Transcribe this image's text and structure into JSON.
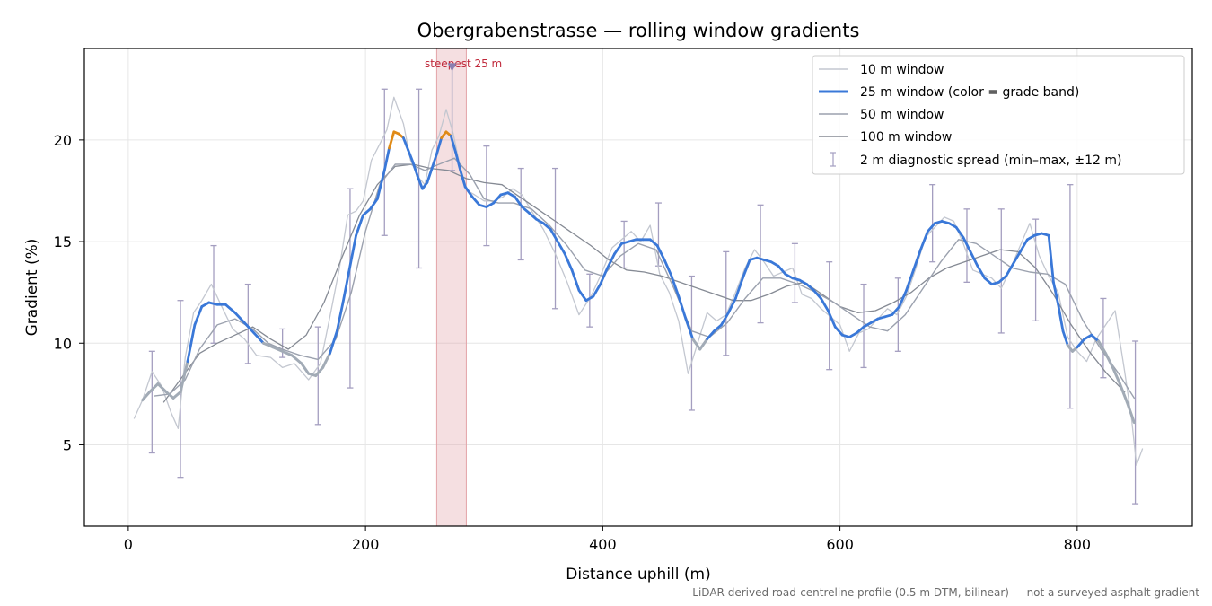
{
  "chart_data": {
    "type": "line",
    "title": "Obergrabenstrasse — rolling window gradients",
    "xlabel": "Distance uphill (m)",
    "ylabel": "Gradient (%)",
    "xlim": [
      -37,
      897
    ],
    "ylim": [
      1.0,
      24.5
    ],
    "x_ticks": [
      0,
      200,
      400,
      600,
      800
    ],
    "y_ticks": [
      5,
      10,
      15,
      20
    ],
    "grid": true,
    "legend_position": "top-right",
    "footnote": "LiDAR-derived road-centreline profile (0.5 m DTM, bilinear) — not a surveyed asphalt gradient",
    "highlight": {
      "label": "steepest 25 m",
      "x_start": 260,
      "x_end": 285,
      "marker_x": 273,
      "marker_y": 23.6,
      "color": "#e3a3a8"
    },
    "series": [
      {
        "name": "10 m window",
        "color": "#c3c7d0",
        "x": [
          5,
          12,
          20,
          28,
          36,
          42,
          48,
          55,
          62,
          70,
          78,
          88,
          98,
          108,
          120,
          130,
          140,
          152,
          162,
          170,
          178,
          185,
          192,
          198,
          205,
          212,
          218,
          224,
          232,
          238,
          244,
          250,
          256,
          262,
          268,
          274,
          280,
          286,
          292,
          300,
          308,
          316,
          324,
          332,
          340,
          350,
          360,
          370,
          380,
          390,
          398,
          408,
          416,
          424,
          432,
          440,
          448,
          456,
          464,
          472,
          480,
          488,
          496,
          504,
          512,
          520,
          528,
          536,
          544,
          552,
          560,
          568,
          576,
          584,
          592,
          600,
          608,
          616,
          624,
          632,
          640,
          648,
          656,
          664,
          672,
          680,
          688,
          696,
          704,
          712,
          720,
          728,
          736,
          744,
          752,
          760,
          768,
          776,
          784,
          792,
          800,
          808,
          816,
          824,
          832,
          840,
          846,
          850,
          855
        ],
        "values": [
          6.3,
          7.2,
          8.6,
          7.9,
          6.6,
          5.8,
          9.3,
          11.5,
          12.1,
          12.9,
          11.9,
          10.7,
          10.2,
          9.4,
          9.3,
          8.8,
          9.0,
          8.2,
          9.0,
          11.3,
          13.7,
          16.3,
          16.5,
          17.0,
          19.0,
          19.8,
          20.5,
          22.1,
          20.8,
          19.0,
          18.2,
          17.8,
          19.5,
          20.2,
          21.5,
          20.3,
          18.6,
          17.5,
          17.3,
          17.0,
          17.0,
          17.2,
          17.6,
          17.3,
          16.5,
          15.6,
          14.4,
          13.0,
          11.4,
          12.3,
          13.3,
          14.7,
          15.1,
          15.5,
          15.0,
          15.8,
          13.4,
          12.5,
          11.1,
          8.5,
          10.0,
          11.5,
          11.1,
          11.4,
          12.5,
          13.7,
          14.6,
          14.0,
          13.3,
          13.5,
          13.7,
          12.4,
          12.2,
          11.7,
          11.3,
          10.9,
          9.6,
          10.5,
          10.7,
          11.2,
          11.7,
          11.4,
          12.3,
          13.7,
          15.2,
          15.7,
          16.2,
          16.0,
          14.9,
          13.6,
          13.4,
          13.2,
          12.7,
          13.7,
          14.8,
          15.9,
          14.3,
          13.3,
          12.5,
          10.3,
          9.6,
          9.1,
          10.2,
          10.9,
          11.6,
          8.6,
          6.2,
          4.0,
          4.8
        ]
      },
      {
        "name": "25 m window (color = grade band)",
        "color": "#3a78d8",
        "band_colors": {
          "high": "#e08a16",
          "mid": "#3a78d8",
          "low": "#a2abb6"
        },
        "x": [
          12,
          18,
          25,
          32,
          38,
          44,
          50,
          56,
          62,
          68,
          75,
          82,
          90,
          98,
          106,
          114,
          122,
          130,
          138,
          146,
          152,
          158,
          164,
          170,
          176,
          181,
          186,
          192,
          198,
          204,
          210,
          216,
          220,
          224,
          228,
          232,
          236,
          240,
          244,
          248,
          252,
          256,
          260,
          264,
          268,
          272,
          276,
          280,
          284,
          290,
          296,
          302,
          308,
          314,
          320,
          326,
          332,
          338,
          344,
          350,
          356,
          362,
          368,
          374,
          380,
          386,
          392,
          398,
          404,
          410,
          416,
          422,
          428,
          434,
          440,
          446,
          452,
          458,
          464,
          470,
          476,
          482,
          488,
          494,
          500,
          506,
          512,
          518,
          524,
          530,
          536,
          542,
          548,
          554,
          560,
          566,
          572,
          578,
          584,
          590,
          596,
          602,
          608,
          614,
          620,
          626,
          632,
          638,
          644,
          650,
          656,
          662,
          668,
          674,
          680,
          686,
          692,
          698,
          704,
          710,
          716,
          722,
          728,
          734,
          740,
          746,
          752,
          758,
          764,
          770,
          776,
          780,
          784,
          788,
          792,
          796,
          800,
          806,
          812,
          818,
          824,
          830,
          836,
          842,
          848
        ],
        "values": [
          7.2,
          7.6,
          8.0,
          7.6,
          7.3,
          7.6,
          9.1,
          10.9,
          11.8,
          12.0,
          11.9,
          11.9,
          11.5,
          11.0,
          10.5,
          10.0,
          9.8,
          9.6,
          9.4,
          9.0,
          8.5,
          8.4,
          8.8,
          9.5,
          10.6,
          12.0,
          13.5,
          15.3,
          16.3,
          16.6,
          17.1,
          18.5,
          19.6,
          20.4,
          20.3,
          20.1,
          19.5,
          18.9,
          18.2,
          17.6,
          17.9,
          18.6,
          19.3,
          20.1,
          20.4,
          20.2,
          19.4,
          18.5,
          17.7,
          17.2,
          16.8,
          16.7,
          16.9,
          17.3,
          17.4,
          17.2,
          16.7,
          16.4,
          16.1,
          15.9,
          15.6,
          15.0,
          14.4,
          13.6,
          12.6,
          12.1,
          12.3,
          12.9,
          13.7,
          14.4,
          14.9,
          15.0,
          15.1,
          15.1,
          15.1,
          14.8,
          14.1,
          13.3,
          12.3,
          11.2,
          10.2,
          9.7,
          10.2,
          10.6,
          10.9,
          11.5,
          12.2,
          13.2,
          14.1,
          14.2,
          14.1,
          14.0,
          13.8,
          13.4,
          13.2,
          13.1,
          12.9,
          12.6,
          12.2,
          11.6,
          10.8,
          10.4,
          10.3,
          10.5,
          10.8,
          11.0,
          11.2,
          11.3,
          11.4,
          11.8,
          12.6,
          13.6,
          14.6,
          15.5,
          15.9,
          16.0,
          15.9,
          15.7,
          15.2,
          14.5,
          13.8,
          13.2,
          12.9,
          13.0,
          13.3,
          13.9,
          14.5,
          15.1,
          15.3,
          15.4,
          15.3,
          13.0,
          11.9,
          10.6,
          9.9,
          9.6,
          9.8,
          10.2,
          10.4,
          10.1,
          9.5,
          8.8,
          8.0,
          7.1,
          6.1
        ]
      },
      {
        "name": "50 m window",
        "color": "#9ba1ae",
        "x": [
          22,
          35,
          48,
          60,
          75,
          90,
          105,
          118,
          130,
          145,
          160,
          175,
          188,
          200,
          212,
          225,
          238,
          250,
          262,
          275,
          288,
          300,
          312,
          325,
          340,
          355,
          370,
          385,
          400,
          415,
          430,
          445,
          460,
          475,
          490,
          505,
          520,
          535,
          550,
          565,
          580,
          595,
          610,
          625,
          640,
          655,
          670,
          685,
          700,
          715,
          730,
          745,
          760,
          775,
          790,
          805,
          820,
          835,
          848
        ],
        "values": [
          7.4,
          7.5,
          8.2,
          9.7,
          10.9,
          11.2,
          10.7,
          10.0,
          9.7,
          9.4,
          9.2,
          10.2,
          12.5,
          15.5,
          17.8,
          18.8,
          18.8,
          18.5,
          18.8,
          19.1,
          18.3,
          17.1,
          16.9,
          16.9,
          16.6,
          15.8,
          14.8,
          13.6,
          13.3,
          14.3,
          14.9,
          14.6,
          12.7,
          10.6,
          10.3,
          11.0,
          12.2,
          13.2,
          13.2,
          12.9,
          12.5,
          12.0,
          11.4,
          10.8,
          10.6,
          11.4,
          12.7,
          14.0,
          15.1,
          14.9,
          14.3,
          13.7,
          13.5,
          13.4,
          12.9,
          11.1,
          9.7,
          8.5,
          7.3
        ]
      },
      {
        "name": "100 m window",
        "color": "#858a94",
        "x": [
          30,
          45,
          60,
          75,
          90,
          105,
          120,
          135,
          150,
          165,
          180,
          195,
          210,
          225,
          240,
          255,
          270,
          285,
          300,
          315,
          330,
          345,
          360,
          375,
          390,
          405,
          420,
          435,
          450,
          465,
          480,
          495,
          510,
          525,
          540,
          555,
          570,
          585,
          600,
          615,
          630,
          645,
          660,
          675,
          690,
          705,
          720,
          735,
          750,
          765,
          780,
          795,
          810,
          825,
          840
        ],
        "values": [
          7.1,
          8.3,
          9.5,
          10.0,
          10.4,
          10.8,
          10.2,
          9.7,
          10.4,
          12.0,
          14.2,
          16.3,
          17.8,
          18.7,
          18.8,
          18.6,
          18.5,
          18.1,
          17.9,
          17.8,
          17.2,
          16.6,
          16.0,
          15.4,
          14.8,
          14.1,
          13.6,
          13.5,
          13.3,
          13.0,
          12.7,
          12.4,
          12.1,
          12.1,
          12.4,
          12.8,
          13.0,
          12.4,
          11.8,
          11.5,
          11.6,
          12.0,
          12.5,
          13.2,
          13.7,
          14.0,
          14.3,
          14.6,
          14.5,
          13.7,
          12.4,
          10.9,
          9.6,
          8.5,
          7.6
        ]
      }
    ],
    "diagnostic_spread": {
      "name": "2 m diagnostic spread (min–max, ±12 m)",
      "color": "#a49ec0",
      "x": [
        20,
        44,
        72,
        101,
        130,
        160,
        187,
        216,
        245,
        273,
        302,
        331,
        360,
        389,
        418,
        447,
        475,
        504,
        533,
        562,
        591,
        620,
        649,
        678,
        707,
        736,
        765,
        794,
        822,
        849
      ],
      "low": [
        4.6,
        3.4,
        10.0,
        9.0,
        9.3,
        6.0,
        7.8,
        15.3,
        13.7,
        18.5,
        14.8,
        14.1,
        11.7,
        10.8,
        13.7,
        13.8,
        6.7,
        9.4,
        11.0,
        12.0,
        8.7,
        8.8,
        9.6,
        14.0,
        13.0,
        10.5,
        11.1,
        6.8,
        8.3,
        2.1
      ],
      "high": [
        9.6,
        12.1,
        14.8,
        12.9,
        10.7,
        10.8,
        17.6,
        22.5,
        22.5,
        23.6,
        19.7,
        18.6,
        18.6,
        13.4,
        16.0,
        16.9,
        13.3,
        14.5,
        16.8,
        14.9,
        14.0,
        12.9,
        13.2,
        17.8,
        16.6,
        16.6,
        16.1,
        17.8,
        12.2,
        10.1
      ]
    }
  }
}
